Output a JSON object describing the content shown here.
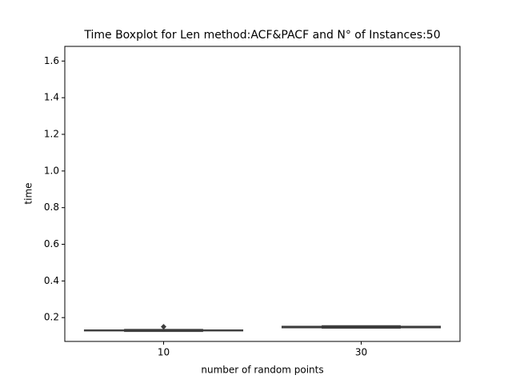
{
  "chart_data": {
    "type": "box",
    "title": "Time Boxplot for Len method:ACF&PACF and N° of Instances:50",
    "x_label": "number of random points",
    "y_label": "time",
    "categories": [
      "10",
      "30"
    ],
    "boxes": [
      {
        "whislo": 0.125,
        "q1": 0.128,
        "median": 0.13,
        "q3": 0.132,
        "whishi": 0.135,
        "fliers": [
          0.15
        ]
      },
      {
        "whislo": 0.143,
        "q1": 0.145,
        "median": 0.148,
        "q3": 0.152,
        "whishi": 0.155,
        "fliers": []
      }
    ],
    "color": "#4a4a4a",
    "line_color": "#3d3d3d",
    "ylim": [
      0.07,
      1.68
    ],
    "yticks": [
      0.2,
      0.4,
      0.6,
      0.8,
      {
        "value": 1,
        "label": "1.0"
      },
      1.2,
      1.4,
      1.6
    ]
  }
}
